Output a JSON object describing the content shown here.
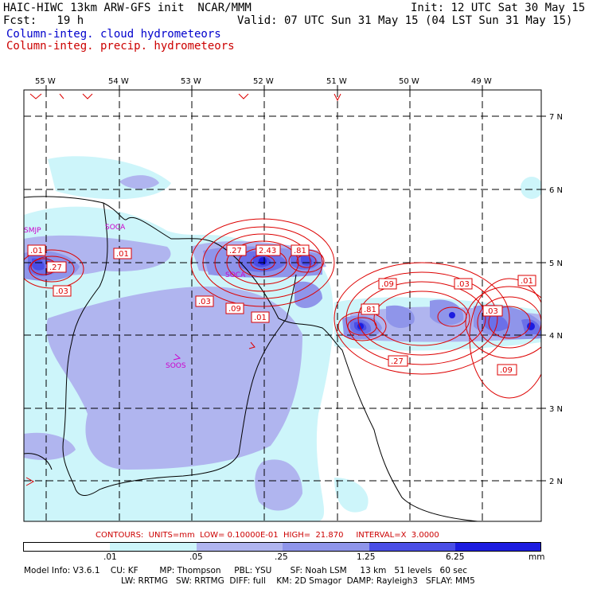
{
  "header": {
    "model_line": "HAIC-HIWC 13km ARW-GFS init  NCAR/MMM",
    "init_line": "Init: 12 UTC Sat 30 May 15",
    "fcst_line": "Fcst:   19 h",
    "valid_line": "Valid: 07 UTC Sun 31 May 15 (04 LST Sun 31 May 15)",
    "field1": "Column-integ. cloud hydrometeors",
    "field2": "Column-integ. precip. hydrometeors"
  },
  "map": {
    "lon_labels": [
      "55 W",
      "54 W",
      "53 W",
      "52 W",
      "51 W",
      "50 W",
      "49 W"
    ],
    "lat_labels": [
      "7 N",
      "6 N",
      "5 N",
      "4 N",
      "3 N",
      "2 N"
    ],
    "stations": [
      "SMJP",
      "SOCA",
      "SOCA",
      "SOOS"
    ],
    "contour_labels": [
      ".01",
      ".27",
      ".03",
      ".01",
      ".27",
      "2.43",
      ".81",
      ".03",
      ".09",
      ".01",
      ".09",
      ".03",
      ".01",
      ".81",
      ".03",
      ".27",
      ".09"
    ]
  },
  "colors": {
    "level1": "#cdf5fa",
    "level2": "#b0b5ef",
    "level3": "#8f95ea",
    "level4": "#6b70e8",
    "level5": "#4a4ee6",
    "level6": "#1c1ce0",
    "contour": "#dd0000",
    "station": "#cc00cc",
    "header_blue": "#0000cc",
    "header_red": "#cc0000"
  },
  "footer": {
    "contours_line": "CONTOURS:  UNITS=mm  LOW= 0.10000E-01  HIGH=  21.870     INTERVAL=X  3.0000",
    "colorbar_ticks": [
      ".01",
      ".05",
      ".25",
      "1.25",
      "6.25",
      "mm"
    ],
    "model_info1": "Model Info: V3.6.1    CU: KF        MP: Thompson     PBL: YSU       SF: Noah LSM     13 km   51 levels   60 sec",
    "model_info2": "LW: RRTMG   SW: RRTMG  DIFF: full    KM: 2D Smagor  DAMP: Rayleigh3   SFLAY: MM5"
  }
}
